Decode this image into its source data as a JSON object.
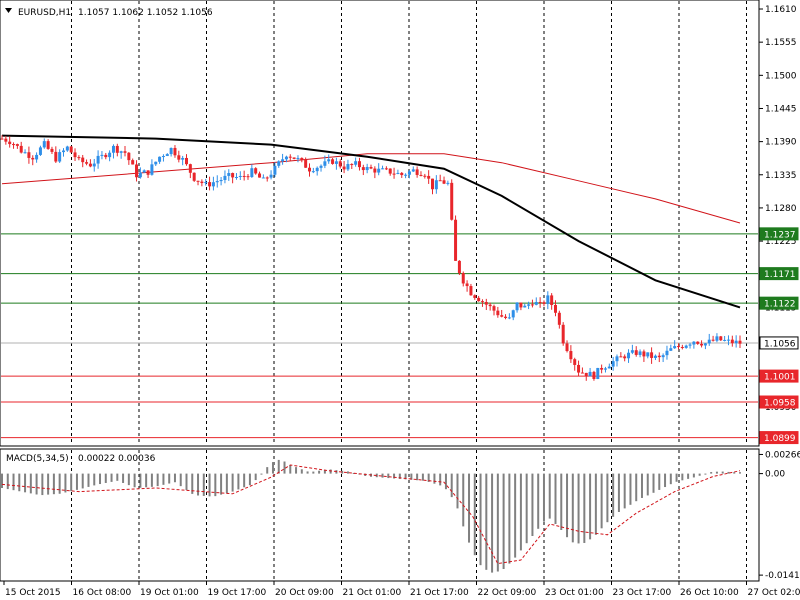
{
  "header": {
    "symbol": "EURUSD,H1",
    "ohlc": "1.1057 1.1062 1.1052 1.1056"
  },
  "macd_header": {
    "label": "MACD(5,34,5)",
    "values": "0.00022 0.00036"
  },
  "colors": {
    "bull": "#2f8fe8",
    "bear": "#e8262b",
    "ma_fast": "#000000",
    "ma_slow": "#d1141a",
    "support_line": "#2b7a2b",
    "resistance_line": "#d1141a",
    "price_line": "#b0b0b0",
    "grid": "#000000",
    "macd_hist": "#808080",
    "macd_signal": "#d1141a"
  },
  "chart_data": [
    {
      "type": "candlestick",
      "title": "EURUSD,H1",
      "y_ticks": [
        "1.1610",
        "1.1555",
        "1.1500",
        "1.1445",
        "1.1390",
        "1.1335",
        "1.1280",
        "1.1225",
        "1.1170",
        "1.1115",
        "1.1060",
        "1.1005",
        "1.0950"
      ],
      "ylim": [
        1.089,
        1.1615
      ],
      "x_ticks": [
        "15 Oct 2015",
        "16 Oct 08:00",
        "19 Oct 01:00",
        "19 Oct 17:00",
        "20 Oct 09:00",
        "21 Oct 01:00",
        "21 Oct 17:00",
        "22 Oct 09:00",
        "23 Oct 01:00",
        "23 Oct 17:00",
        "26 Oct 10:00",
        "27 Oct 02:00"
      ],
      "grid": "vertical dashed",
      "horizontal_levels": [
        {
          "label": "1.1237",
          "value": 1.1237,
          "color": "#1e7b1e"
        },
        {
          "label": "1.1171",
          "value": 1.1171,
          "color": "#1e7b1e"
        },
        {
          "label": "1.1122",
          "value": 1.1122,
          "color": "#1e7b1e"
        },
        {
          "label": "1.1056",
          "value": 1.1056,
          "color": "#000000"
        },
        {
          "label": "1.1001",
          "value": 1.1001,
          "color": "#e8262b"
        },
        {
          "label": "1.0958",
          "value": 1.0958,
          "color": "#e8262b"
        },
        {
          "label": "1.0899",
          "value": 1.0899,
          "color": "#e8262b"
        }
      ],
      "close_path": [
        [
          0,
          1.1395
        ],
        [
          5,
          1.139
        ],
        [
          10,
          1.1375
        ],
        [
          16,
          1.1365
        ],
        [
          22,
          1.1385
        ],
        [
          28,
          1.1362
        ],
        [
          34,
          1.138
        ],
        [
          40,
          1.1358
        ],
        [
          46,
          1.1352
        ],
        [
          52,
          1.1365
        ],
        [
          58,
          1.138
        ],
        [
          64,
          1.1372
        ],
        [
          70,
          1.1335
        ],
        [
          76,
          1.134
        ],
        [
          82,
          1.1365
        ],
        [
          88,
          1.1378
        ],
        [
          94,
          1.136
        ],
        [
          100,
          1.133
        ],
        [
          106,
          1.1318
        ],
        [
          112,
          1.1325
        ],
        [
          118,
          1.1332
        ],
        [
          124,
          1.133
        ],
        [
          130,
          1.134
        ],
        [
          136,
          1.1325
        ],
        [
          142,
          1.1345
        ],
        [
          148,
          1.137
        ],
        [
          154,
          1.136
        ],
        [
          160,
          1.1345
        ],
        [
          166,
          1.135
        ],
        [
          172,
          1.1358
        ],
        [
          178,
          1.1348
        ],
        [
          184,
          1.1352
        ],
        [
          190,
          1.1345
        ],
        [
          196,
          1.1342
        ],
        [
          202,
          1.134
        ],
        [
          208,
          1.1335
        ],
        [
          214,
          1.1342
        ],
        [
          220,
          1.1338
        ],
        [
          224,
          1.1315
        ],
        [
          228,
          1.1325
        ],
        [
          232,
          1.132
        ],
        [
          236,
          1.119
        ],
        [
          240,
          1.116
        ],
        [
          244,
          1.114
        ],
        [
          248,
          1.113
        ],
        [
          252,
          1.112
        ],
        [
          256,
          1.111
        ],
        [
          260,
          1.11
        ],
        [
          264,
          1.1095
        ],
        [
          268,
          1.112
        ],
        [
          272,
          1.1115
        ],
        [
          276,
          1.1125
        ],
        [
          280,
          1.1118
        ],
        [
          284,
          1.113
        ],
        [
          288,
          1.111
        ],
        [
          292,
          1.106
        ],
        [
          296,
          1.1035
        ],
        [
          300,
          1.101
        ],
        [
          304,
          1.1005
        ],
        [
          308,
          1.1002
        ],
        [
          312,
          1.1015
        ],
        [
          318,
          1.1025
        ],
        [
          324,
          1.1035
        ],
        [
          330,
          1.104
        ],
        [
          336,
          1.1035
        ],
        [
          342,
          1.103
        ],
        [
          348,
          1.1045
        ],
        [
          354,
          1.1052
        ],
        [
          360,
          1.106
        ],
        [
          366,
          1.1055
        ],
        [
          372,
          1.1062
        ],
        [
          378,
          1.1058
        ],
        [
          384,
          1.1056
        ]
      ],
      "ma_fast": [
        [
          0,
          1.14
        ],
        [
          80,
          1.1395
        ],
        [
          140,
          1.1385
        ],
        [
          190,
          1.1365
        ],
        [
          230,
          1.1345
        ],
        [
          260,
          1.13
        ],
        [
          300,
          1.1225
        ],
        [
          340,
          1.116
        ],
        [
          384,
          1.1115
        ]
      ],
      "ma_slow": [
        [
          0,
          1.132
        ],
        [
          80,
          1.134
        ],
        [
          140,
          1.1355
        ],
        [
          190,
          1.137
        ],
        [
          230,
          1.137
        ],
        [
          260,
          1.1355
        ],
        [
          300,
          1.1325
        ],
        [
          340,
          1.1295
        ],
        [
          384,
          1.1255
        ]
      ]
    },
    {
      "type": "bar",
      "title": "MACD(5,34,5)",
      "y_ticks": [
        "0.00266",
        "0.00",
        "-0.0141"
      ],
      "ylim": [
        -0.0145,
        0.003
      ],
      "histogram": [
        [
          0,
          -0.002
        ],
        [
          10,
          -0.0025
        ],
        [
          20,
          -0.003
        ],
        [
          30,
          -0.0028
        ],
        [
          40,
          -0.0022
        ],
        [
          50,
          -0.0015
        ],
        [
          60,
          -0.001
        ],
        [
          70,
          -0.002
        ],
        [
          80,
          -0.0018
        ],
        [
          90,
          -0.0012
        ],
        [
          100,
          -0.003
        ],
        [
          110,
          -0.0032
        ],
        [
          120,
          -0.0025
        ],
        [
          130,
          -0.0015
        ],
        [
          140,
          0.0015
        ],
        [
          145,
          0.002
        ],
        [
          150,
          0.0012
        ],
        [
          160,
          0.0002
        ],
        [
          170,
          0.0006
        ],
        [
          180,
          0.0003
        ],
        [
          190,
          -0.0004
        ],
        [
          200,
          -0.0006
        ],
        [
          210,
          -0.0008
        ],
        [
          220,
          -0.001
        ],
        [
          230,
          -0.0018
        ],
        [
          236,
          -0.004
        ],
        [
          242,
          -0.009
        ],
        [
          248,
          -0.0125
        ],
        [
          254,
          -0.0138
        ],
        [
          260,
          -0.0135
        ],
        [
          266,
          -0.012
        ],
        [
          272,
          -0.01
        ],
        [
          278,
          -0.008
        ],
        [
          284,
          -0.006
        ],
        [
          290,
          -0.0075
        ],
        [
          296,
          -0.0095
        ],
        [
          302,
          -0.0098
        ],
        [
          308,
          -0.0088
        ],
        [
          314,
          -0.007
        ],
        [
          320,
          -0.0055
        ],
        [
          326,
          -0.0045
        ],
        [
          332,
          -0.0035
        ],
        [
          338,
          -0.0028
        ],
        [
          344,
          -0.002
        ],
        [
          350,
          -0.0012
        ],
        [
          356,
          -0.0008
        ],
        [
          362,
          -0.0004
        ],
        [
          368,
          0.0002
        ],
        [
          374,
          0.0003
        ],
        [
          380,
          0.0002
        ],
        [
          384,
          0.0002
        ]
      ],
      "signal": [
        [
          0,
          -0.0015
        ],
        [
          40,
          -0.0025
        ],
        [
          80,
          -0.002
        ],
        [
          120,
          -0.0028
        ],
        [
          140,
          -0.0005
        ],
        [
          150,
          0.0012
        ],
        [
          170,
          0.0004
        ],
        [
          200,
          -0.0004
        ],
        [
          230,
          -0.0012
        ],
        [
          245,
          -0.006
        ],
        [
          258,
          -0.0125
        ],
        [
          270,
          -0.012
        ],
        [
          285,
          -0.007
        ],
        [
          300,
          -0.008
        ],
        [
          315,
          -0.0085
        ],
        [
          330,
          -0.0055
        ],
        [
          350,
          -0.0025
        ],
        [
          370,
          -0.0004
        ],
        [
          384,
          0.0004
        ]
      ]
    }
  ]
}
